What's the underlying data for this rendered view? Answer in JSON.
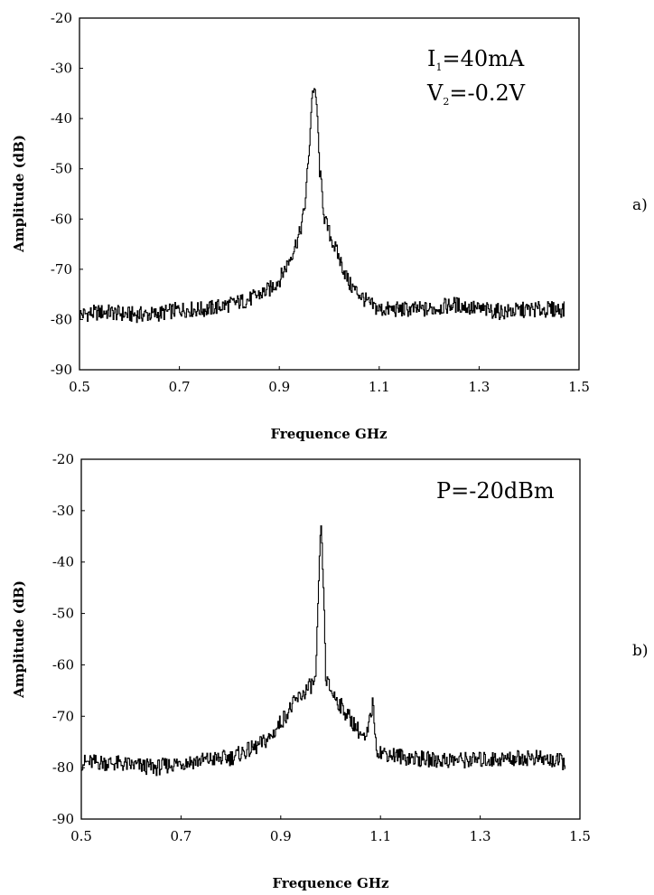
{
  "chart_data": [
    {
      "type": "line",
      "panel_label": "a)",
      "xlabel": "Frequence GHz",
      "ylabel": "Amplitude (dB)",
      "xlim": [
        0.5,
        1.5
      ],
      "ylim": [
        -90,
        -20
      ],
      "xticks": [
        "0.5",
        "0.7",
        "0.9",
        "1.1",
        "1.3",
        "1.5"
      ],
      "yticks": [
        "-20",
        "-30",
        "-40",
        "-50",
        "-60",
        "-70",
        "-80",
        "-90"
      ],
      "annotations": [
        {
          "main": "I",
          "sub": "1",
          "rest": "=40mA"
        },
        {
          "main": "V",
          "sub": "2",
          "rest": "=-0.2V"
        }
      ],
      "grid": false,
      "series": [
        {
          "x": [
            0.5,
            0.55,
            0.6,
            0.65,
            0.7,
            0.75,
            0.8,
            0.84,
            0.88,
            0.9,
            0.92,
            0.94,
            0.95,
            0.96,
            0.965,
            0.97,
            0.975,
            0.98,
            0.99,
            1.0,
            1.02,
            1.04,
            1.06,
            1.08,
            1.1,
            1.15,
            1.2,
            1.25,
            1.3,
            1.35,
            1.4,
            1.47
          ],
          "y": [
            -79,
            -78.5,
            -79,
            -79,
            -78,
            -78,
            -77,
            -76,
            -74,
            -72,
            -68,
            -63,
            -58,
            -45,
            -35,
            -34,
            -38,
            -50,
            -60,
            -63,
            -68,
            -73,
            -75,
            -77,
            -78,
            -78,
            -78,
            -77,
            -78,
            -78.5,
            -78,
            -78
          ]
        }
      ]
    },
    {
      "type": "line",
      "panel_label": "b)",
      "xlabel": "Frequence GHz",
      "ylabel": "Amplitude (dB)",
      "xlim": [
        0.5,
        1.5
      ],
      "ylim": [
        -90,
        -20
      ],
      "xticks": [
        "0.5",
        "0.7",
        "0.9",
        "1.1",
        "1.3",
        "1.5"
      ],
      "yticks": [
        "-20",
        "-30",
        "-40",
        "-50",
        "-60",
        "-70",
        "-80",
        "-90"
      ],
      "annotations": [
        {
          "main": "P=-20dBm",
          "sub": "",
          "rest": ""
        }
      ],
      "grid": false,
      "series": [
        {
          "x": [
            0.5,
            0.55,
            0.6,
            0.65,
            0.7,
            0.75,
            0.8,
            0.85,
            0.88,
            0.9,
            0.93,
            0.95,
            0.97,
            0.975,
            0.98,
            0.985,
            0.99,
            1.0,
            1.02,
            1.05,
            1.07,
            1.085,
            1.09,
            1.1,
            1.15,
            1.2,
            1.3,
            1.4,
            1.47
          ],
          "y": [
            -79,
            -79,
            -79.5,
            -80,
            -79,
            -78.5,
            -78,
            -76,
            -74,
            -71,
            -67,
            -65,
            -63,
            -45,
            -32,
            -45,
            -63,
            -65,
            -68,
            -72,
            -75,
            -67,
            -76,
            -77,
            -78,
            -78.5,
            -78.5,
            -78,
            -79
          ]
        }
      ]
    }
  ]
}
